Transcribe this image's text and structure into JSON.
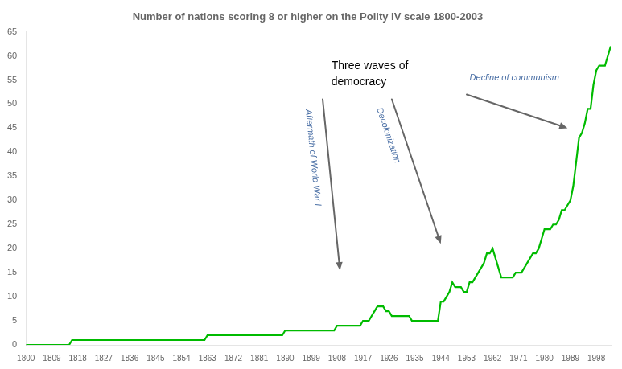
{
  "chart_data": {
    "type": "line",
    "title": "Number of nations scoring 8 or higher on the Polity IV scale 1800-2003",
    "x": [
      1800,
      1801,
      1802,
      1803,
      1804,
      1805,
      1806,
      1807,
      1808,
      1809,
      1810,
      1811,
      1812,
      1813,
      1814,
      1815,
      1816,
      1817,
      1818,
      1819,
      1820,
      1821,
      1822,
      1823,
      1824,
      1825,
      1826,
      1827,
      1828,
      1829,
      1830,
      1831,
      1832,
      1833,
      1834,
      1835,
      1836,
      1837,
      1838,
      1839,
      1840,
      1841,
      1842,
      1843,
      1844,
      1845,
      1846,
      1847,
      1848,
      1849,
      1850,
      1851,
      1852,
      1853,
      1854,
      1855,
      1856,
      1857,
      1858,
      1859,
      1860,
      1861,
      1862,
      1863,
      1864,
      1865,
      1866,
      1867,
      1868,
      1869,
      1870,
      1871,
      1872,
      1873,
      1874,
      1875,
      1876,
      1877,
      1878,
      1879,
      1880,
      1881,
      1882,
      1883,
      1884,
      1885,
      1886,
      1887,
      1888,
      1889,
      1890,
      1891,
      1892,
      1893,
      1894,
      1895,
      1896,
      1897,
      1898,
      1899,
      1900,
      1901,
      1902,
      1903,
      1904,
      1905,
      1906,
      1907,
      1908,
      1909,
      1910,
      1911,
      1912,
      1913,
      1914,
      1915,
      1916,
      1917,
      1918,
      1919,
      1920,
      1921,
      1922,
      1923,
      1924,
      1925,
      1926,
      1927,
      1928,
      1929,
      1930,
      1931,
      1932,
      1933,
      1934,
      1935,
      1936,
      1937,
      1938,
      1939,
      1940,
      1941,
      1942,
      1943,
      1944,
      1945,
      1946,
      1947,
      1948,
      1949,
      1950,
      1951,
      1952,
      1953,
      1954,
      1955,
      1956,
      1957,
      1958,
      1959,
      1960,
      1961,
      1962,
      1963,
      1964,
      1965,
      1966,
      1967,
      1968,
      1969,
      1970,
      1971,
      1972,
      1973,
      1974,
      1975,
      1976,
      1977,
      1978,
      1979,
      1980,
      1981,
      1982,
      1983,
      1984,
      1985,
      1986,
      1987,
      1988,
      1989,
      1990,
      1991,
      1992,
      1993,
      1994,
      1995,
      1996,
      1997,
      1998,
      1999,
      2000,
      2001,
      2002,
      2003
    ],
    "values": [
      0,
      0,
      0,
      0,
      0,
      0,
      0,
      0,
      0,
      0,
      0,
      0,
      0,
      0,
      0,
      0,
      1,
      1,
      1,
      1,
      1,
      1,
      1,
      1,
      1,
      1,
      1,
      1,
      1,
      1,
      1,
      1,
      1,
      1,
      1,
      1,
      1,
      1,
      1,
      1,
      1,
      1,
      1,
      1,
      1,
      1,
      1,
      1,
      1,
      1,
      1,
      1,
      1,
      1,
      1,
      1,
      1,
      1,
      1,
      1,
      1,
      1,
      1,
      2,
      2,
      2,
      2,
      2,
      2,
      2,
      2,
      2,
      2,
      2,
      2,
      2,
      2,
      2,
      2,
      2,
      2,
      2,
      2,
      2,
      2,
      2,
      2,
      2,
      2,
      2,
      3,
      3,
      3,
      3,
      3,
      3,
      3,
      3,
      3,
      3,
      3,
      3,
      3,
      3,
      3,
      3,
      3,
      3,
      4,
      4,
      4,
      4,
      4,
      4,
      4,
      4,
      4,
      5,
      5,
      5,
      6,
      7,
      8,
      8,
      8,
      7,
      7,
      6,
      6,
      6,
      6,
      6,
      6,
      6,
      5,
      5,
      5,
      5,
      5,
      5,
      5,
      5,
      5,
      5,
      9,
      9,
      10,
      11,
      13,
      12,
      12,
      12,
      11,
      11,
      13,
      13,
      14,
      15,
      16,
      17,
      19,
      19,
      20,
      18,
      16,
      14,
      14,
      14,
      14,
      14,
      15,
      15,
      15,
      16,
      17,
      18,
      19,
      19,
      20,
      22,
      24,
      24,
      24,
      25,
      25,
      26,
      28,
      28,
      29,
      30,
      33,
      38,
      43,
      44,
      46,
      49,
      49,
      54,
      57,
      58,
      58,
      58,
      60,
      62
    ],
    "color": "#00bb00",
    "xlim": [
      1800,
      2003
    ],
    "xticks": [
      1800,
      1809,
      1818,
      1827,
      1836,
      1845,
      1854,
      1863,
      1872,
      1881,
      1890,
      1899,
      1908,
      1917,
      1926,
      1935,
      1944,
      1953,
      1962,
      1971,
      1980,
      1989,
      1998
    ],
    "ylim": [
      0,
      65
    ],
    "yticks": [
      0,
      5,
      10,
      15,
      20,
      25,
      30,
      35,
      40,
      45,
      50,
      55,
      60,
      65
    ],
    "grid": false,
    "annotations": [
      {
        "text": "Three waves of\ndemocracy",
        "color": "#000000"
      },
      {
        "text": "Aftermath of World War I",
        "color": "#4a6fa5"
      },
      {
        "text": "Decolonization",
        "color": "#4a6fa5"
      },
      {
        "text": "Decline of communism",
        "color": "#4a6fa5"
      }
    ]
  }
}
